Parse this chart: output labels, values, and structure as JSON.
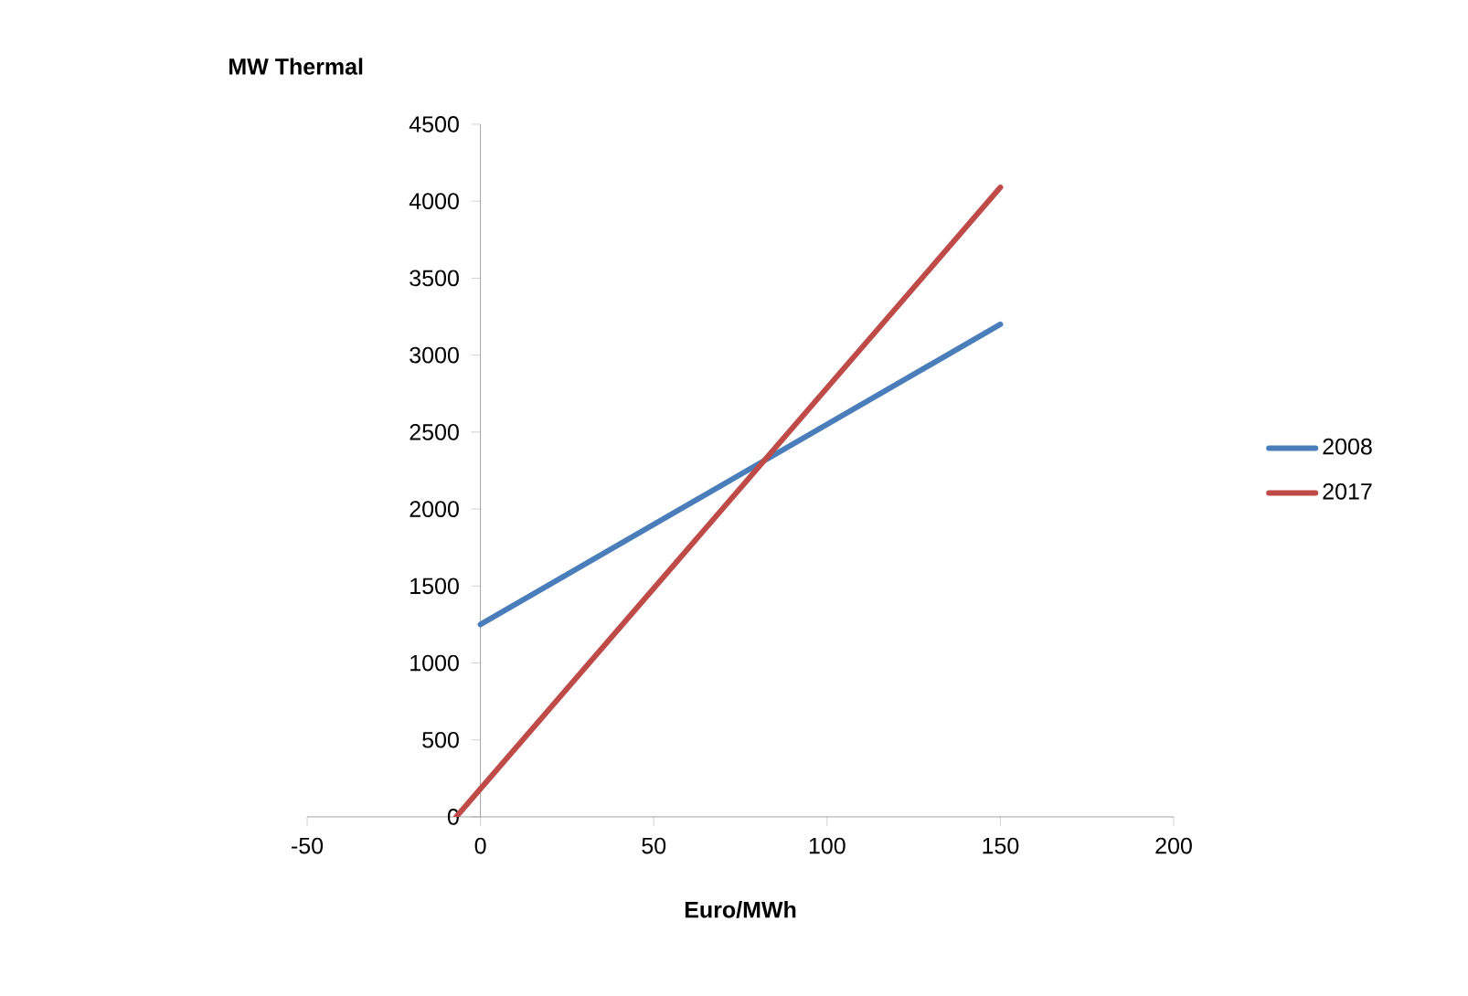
{
  "chart_data": {
    "type": "line",
    "xlabel": "Euro/MWh",
    "ylabel": "MW Thermal",
    "xlim": [
      -50,
      200
    ],
    "xticks": [
      -50,
      0,
      50,
      100,
      150,
      200
    ],
    "ylim": [
      0,
      4500
    ],
    "yticks": [
      0,
      500,
      1000,
      1500,
      2000,
      2500,
      3000,
      3500,
      4000,
      4500
    ],
    "legend": "right",
    "grid": false,
    "marker": "none",
    "line_style": "solid",
    "series": [
      {
        "name": "2008",
        "color": "#4a7ebb",
        "x": [
          0,
          150
        ],
        "values": [
          1250,
          3200
        ]
      },
      {
        "name": "2017",
        "color": "#be4b48",
        "x": [
          -7,
          150
        ],
        "values": [
          0,
          4090
        ]
      }
    ]
  }
}
